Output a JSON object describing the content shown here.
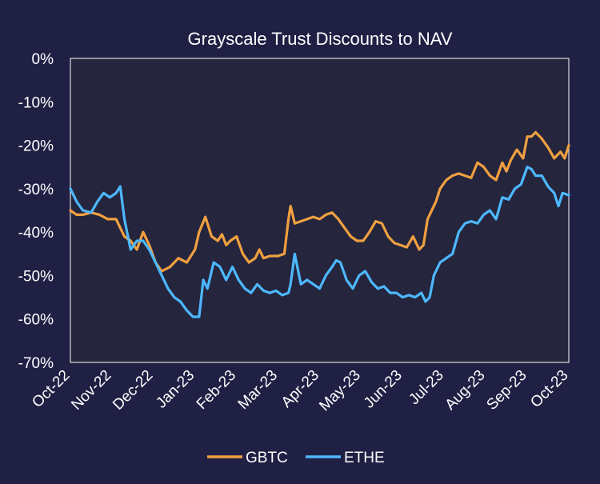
{
  "chart_data": {
    "type": "line",
    "title": "Grayscale Trust Discounts to NAV",
    "xlabel": "",
    "ylabel": "",
    "ylim": [
      -70,
      0
    ],
    "yticks": [
      0,
      -10,
      -20,
      -30,
      -40,
      -50,
      -60,
      -70
    ],
    "ytick_labels": [
      "0%",
      "-10%",
      "-20%",
      "-30%",
      "-40%",
      "-50%",
      "-60%",
      "-70%"
    ],
    "xticks": [
      "Oct-22",
      "Nov-22",
      "Dec-22",
      "Jan-23",
      "Feb-23",
      "Mar-23",
      "Apr-23",
      "May-23",
      "Jun-23",
      "Jul-23",
      "Aug-23",
      "Sep-23",
      "Oct-23"
    ],
    "grid": false,
    "legend_position": "bottom",
    "colors": {
      "background": "#202045",
      "plot_background": "#25253d",
      "GBTC": "#f0a040",
      "ETHE": "#4db8ff"
    },
    "series": [
      {
        "name": "GBTC",
        "x": [
          0,
          0.15,
          0.3,
          0.5,
          0.7,
          0.9,
          1.1,
          1.3,
          1.45,
          1.6,
          1.75,
          1.9,
          2.05,
          2.2,
          2.4,
          2.6,
          2.8,
          3.0,
          3.1,
          3.25,
          3.4,
          3.55,
          3.65,
          3.75,
          3.85,
          4.0,
          4.15,
          4.3,
          4.45,
          4.55,
          4.65,
          4.8,
          5.0,
          5.15,
          5.25,
          5.3,
          5.4,
          5.55,
          5.7,
          5.85,
          6.0,
          6.15,
          6.3,
          6.45,
          6.6,
          6.75,
          6.9,
          7.05,
          7.2,
          7.35,
          7.5,
          7.65,
          7.8,
          7.95,
          8.1,
          8.25,
          8.4,
          8.5,
          8.6,
          8.7,
          8.8,
          8.9,
          9.05,
          9.2,
          9.35,
          9.5,
          9.65,
          9.8,
          9.95,
          10.1,
          10.25,
          10.4,
          10.5,
          10.6,
          10.75,
          10.9,
          11.0,
          11.1,
          11.2,
          11.35,
          11.5,
          11.65,
          11.8,
          11.9,
          12.0
        ],
        "y": [
          -35,
          -36,
          -36,
          -35.5,
          -36,
          -37,
          -37,
          -41,
          -42,
          -44,
          -40,
          -43,
          -47,
          -49,
          -48,
          -46,
          -47,
          -44,
          -40,
          -36.5,
          -41,
          -42,
          -40.5,
          -43,
          -42,
          -41,
          -45,
          -47,
          -46,
          -44,
          -46,
          -45.5,
          -45.5,
          -45,
          -37,
          -34,
          -38,
          -37.5,
          -37,
          -36.5,
          -37,
          -36,
          -35.5,
          -37,
          -39,
          -41,
          -42,
          -42,
          -40,
          -37.5,
          -38,
          -41,
          -42.5,
          -43,
          -43.5,
          -41,
          -44,
          -43,
          -37,
          -35,
          -33,
          -30,
          -28,
          -27,
          -26.5,
          -27,
          -27.5,
          -24,
          -25,
          -27,
          -28,
          -24,
          -26,
          -23.5,
          -21,
          -23,
          -18,
          -18,
          -17,
          -18.5,
          -20.5,
          -23,
          -21.5,
          -23,
          -20
        ]
      },
      {
        "name": "ETHE",
        "x": [
          0,
          0.15,
          0.3,
          0.5,
          0.65,
          0.8,
          0.95,
          1.1,
          1.2,
          1.3,
          1.45,
          1.6,
          1.75,
          1.9,
          2.05,
          2.2,
          2.35,
          2.5,
          2.65,
          2.8,
          2.95,
          3.1,
          3.2,
          3.3,
          3.45,
          3.6,
          3.75,
          3.9,
          4.05,
          4.2,
          4.35,
          4.5,
          4.65,
          4.8,
          4.95,
          5.1,
          5.25,
          5.3,
          5.4,
          5.55,
          5.7,
          5.85,
          6.0,
          6.15,
          6.3,
          6.4,
          6.5,
          6.65,
          6.8,
          6.95,
          7.1,
          7.25,
          7.4,
          7.55,
          7.7,
          7.85,
          8.0,
          8.15,
          8.3,
          8.45,
          8.55,
          8.65,
          8.75,
          8.9,
          9.05,
          9.2,
          9.35,
          9.5,
          9.65,
          9.8,
          9.95,
          10.1,
          10.25,
          10.4,
          10.55,
          10.7,
          10.85,
          11.0,
          11.1,
          11.2,
          11.35,
          11.5,
          11.65,
          11.75,
          11.85,
          12.0
        ],
        "y": [
          -30,
          -33,
          -35,
          -35.5,
          -33,
          -31,
          -32,
          -31,
          -29.5,
          -37,
          -44,
          -42,
          -42,
          -44,
          -47,
          -50,
          -53,
          -55,
          -56,
          -58,
          -59.5,
          -59.5,
          -51,
          -53,
          -47,
          -48,
          -51,
          -48,
          -51,
          -53,
          -54,
          -52,
          -53.5,
          -54,
          -53.5,
          -54.5,
          -54,
          -52,
          -45,
          -52,
          -51,
          -52,
          -53,
          -50,
          -48,
          -46.5,
          -47,
          -51,
          -53,
          -50,
          -49,
          -51.5,
          -53,
          -52.5,
          -54,
          -54,
          -55,
          -54.5,
          -55,
          -54,
          -56,
          -55,
          -50,
          -47,
          -46,
          -45,
          -40,
          -38,
          -37.5,
          -38,
          -36,
          -35,
          -37,
          -32,
          -32.5,
          -30,
          -29,
          -25,
          -25.5,
          -27,
          -27,
          -29.5,
          -31,
          -34,
          -31,
          -31.5
        ]
      }
    ]
  }
}
